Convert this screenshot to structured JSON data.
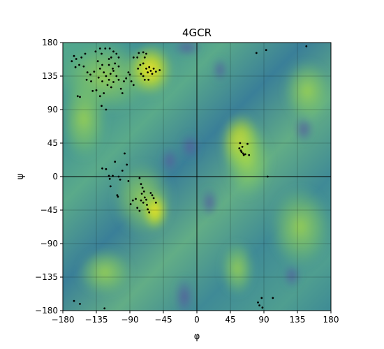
{
  "chart_data": {
    "type": "scatter",
    "title": "4GCR",
    "xlabel": "φ",
    "ylabel": "ψ",
    "xlim": [
      -180,
      180
    ],
    "ylim": [
      -180,
      180
    ],
    "xticks": [
      -180,
      -135,
      -90,
      -45,
      0,
      45,
      90,
      135,
      180
    ],
    "yticks": [
      -180,
      -135,
      -90,
      -45,
      0,
      45,
      90,
      135,
      180
    ],
    "xtick_labels": [
      "−180",
      "−135",
      "−90",
      "−45",
      "0",
      "45",
      "90",
      "135",
      "180"
    ],
    "ytick_labels": [
      "−180",
      "−135",
      "−90",
      "−45",
      "0",
      "45",
      "90",
      "135",
      "180"
    ],
    "grid": true,
    "reference_lines": [
      {
        "axis": "x",
        "value": 0
      },
      {
        "axis": "y",
        "value": 0
      }
    ],
    "background": "density heatmap (viridis)",
    "colors": {
      "low": "#6a5a9e",
      "mid": "#4c9a96",
      "high": "#fde725",
      "points": "#000000"
    },
    "points": [
      [
        -165,
        162
      ],
      [
        -162,
        158
      ],
      [
        -168,
        155
      ],
      [
        -158,
        150
      ],
      [
        -163,
        147
      ],
      [
        -155,
        160
      ],
      [
        -150,
        165
      ],
      [
        -152,
        148
      ],
      [
        -147,
        140
      ],
      [
        -143,
        137
      ],
      [
        -142,
        128
      ],
      [
        -148,
        130
      ],
      [
        -160,
        108
      ],
      [
        -157,
        107
      ],
      [
        -136,
        168
      ],
      [
        -130,
        172
      ],
      [
        -128,
        165
      ],
      [
        -133,
        155
      ],
      [
        -127,
        150
      ],
      [
        -130,
        145
      ],
      [
        -125,
        140
      ],
      [
        -122,
        135
      ],
      [
        -127,
        128
      ],
      [
        -132,
        133
      ],
      [
        -138,
        141
      ],
      [
        -140,
        115
      ],
      [
        -135,
        116
      ],
      [
        -130,
        108
      ],
      [
        -125,
        112
      ],
      [
        -128,
        95
      ],
      [
        -122,
        90
      ],
      [
        -118,
        150
      ],
      [
        -115,
        160
      ],
      [
        -112,
        168
      ],
      [
        -117,
        172
      ],
      [
        -108,
        165
      ],
      [
        -105,
        160
      ],
      [
        -110,
        152
      ],
      [
        -113,
        145
      ],
      [
        -116,
        138
      ],
      [
        -118,
        130
      ],
      [
        -120,
        123
      ],
      [
        -115,
        120
      ],
      [
        -112,
        127
      ],
      [
        -108,
        135
      ],
      [
        -105,
        130
      ],
      [
        -102,
        118
      ],
      [
        -100,
        112
      ],
      [
        -98,
        128
      ],
      [
        -95,
        132
      ],
      [
        -92,
        140
      ],
      [
        -90,
        137
      ],
      [
        -88,
        128
      ],
      [
        -85,
        123
      ],
      [
        -123,
        172
      ],
      [
        -118,
        158
      ],
      [
        -105,
        148
      ],
      [
        -112,
        142
      ],
      [
        -78,
        166
      ],
      [
        -72,
        167
      ],
      [
        -68,
        165
      ],
      [
        -70,
        160
      ],
      [
        -72,
        152
      ],
      [
        -76,
        150
      ],
      [
        -79,
        145
      ],
      [
        -75,
        138
      ],
      [
        -72,
        135
      ],
      [
        -68,
        145
      ],
      [
        -66,
        140
      ],
      [
        -64,
        147
      ],
      [
        -62,
        142
      ],
      [
        -60,
        138
      ],
      [
        -58,
        145
      ],
      [
        -55,
        141
      ],
      [
        -50,
        143
      ],
      [
        -80,
        160
      ],
      [
        -85,
        160
      ],
      [
        -65,
        130
      ],
      [
        -70,
        130
      ],
      [
        -127,
        11
      ],
      [
        -122,
        10
      ],
      [
        -118,
        1
      ],
      [
        -117,
        -3
      ],
      [
        -116,
        -13
      ],
      [
        -113,
        1
      ],
      [
        -110,
        20
      ],
      [
        -105,
        0
      ],
      [
        -103,
        -4
      ],
      [
        -107,
        -25
      ],
      [
        -106,
        -27
      ],
      [
        -100,
        8
      ],
      [
        -97,
        31
      ],
      [
        -94,
        16
      ],
      [
        -92,
        -6
      ],
      [
        -89,
        -37
      ],
      [
        -86,
        -32
      ],
      [
        -82,
        -30
      ],
      [
        -77,
        -2
      ],
      [
        -75,
        -10
      ],
      [
        -73,
        -15
      ],
      [
        -74,
        -23
      ],
      [
        -71,
        -20
      ],
      [
        -70,
        -28
      ],
      [
        -68,
        -31
      ],
      [
        -67,
        -38
      ],
      [
        -66,
        -44
      ],
      [
        -64,
        -48
      ],
      [
        -62,
        -22
      ],
      [
        -60,
        -25
      ],
      [
        -58,
        -29
      ],
      [
        -55,
        -35
      ],
      [
        -72,
        -35
      ],
      [
        -75,
        -32
      ],
      [
        -77,
        -46
      ],
      [
        -80,
        -42
      ],
      [
        58,
        45
      ],
      [
        57,
        38
      ],
      [
        59,
        35
      ],
      [
        60,
        33
      ],
      [
        61,
        40
      ],
      [
        62,
        31
      ],
      [
        63,
        29
      ],
      [
        65,
        30
      ],
      [
        68,
        44
      ],
      [
        70,
        29
      ],
      [
        95,
        0
      ],
      [
        80,
        166
      ],
      [
        93,
        170
      ],
      [
        147,
        175
      ],
      [
        -165,
        -167
      ],
      [
        -157,
        -171
      ],
      [
        -124,
        -177
      ],
      [
        87,
        -163
      ],
      [
        82,
        -169
      ],
      [
        84,
        -173
      ],
      [
        88,
        -176
      ],
      [
        102,
        -163
      ]
    ]
  }
}
